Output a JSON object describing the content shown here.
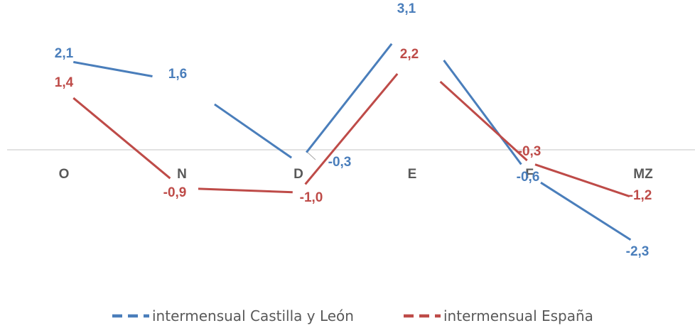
{
  "chart_data": {
    "type": "line",
    "categories": [
      "O",
      "N",
      "D",
      "E",
      "F",
      "MZ"
    ],
    "series": [
      {
        "name": "intermensual Castilla y León",
        "values": [
          2.1,
          1.6,
          -0.3,
          3.1,
          -0.6,
          -2.3
        ],
        "labels": [
          "2,1",
          "1,6",
          "-0,3",
          "3,1",
          "-0,6",
          "-2,3"
        ],
        "color": "#4a7ebb"
      },
      {
        "name": "intermensual España",
        "values": [
          1.4,
          -0.9,
          -1.0,
          2.2,
          -0.3,
          -1.2
        ],
        "labels": [
          "1,4",
          "-0,9",
          "-1,0",
          "2,2",
          "-0,3",
          "-1,2"
        ],
        "color": "#be4b48"
      }
    ],
    "ylim": [
      -4.5,
      3.5
    ],
    "grid": false,
    "legend": "bottom",
    "axis_color": "#d9d9d9"
  }
}
